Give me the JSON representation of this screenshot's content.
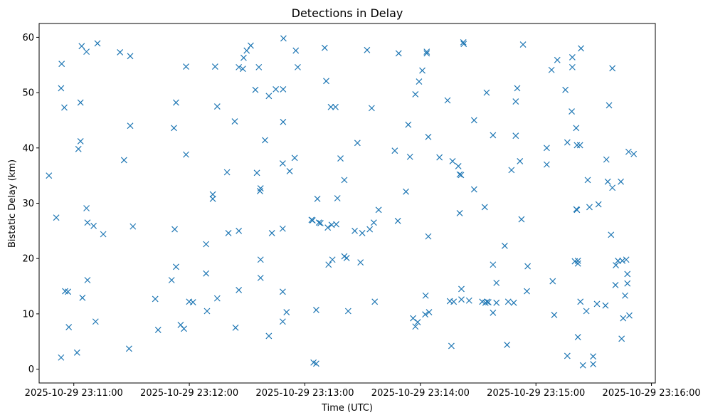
{
  "chart_data": {
    "type": "scatter",
    "title": "Detections in Delay",
    "xlabel": "Time (UTC)",
    "ylabel": "Bistatic Delay (km)",
    "marker": "x",
    "color": "#1f77b4",
    "x_unit": "seconds after 2025-10-29 23:11:00",
    "xlim": [
      -18,
      302
    ],
    "ylim": [
      -2.5,
      62.5
    ],
    "x_ticks": [
      {
        "value": 0,
        "label": "2025-10-29 23:11:00"
      },
      {
        "value": 60,
        "label": "2025-10-29 23:12:00"
      },
      {
        "value": 120,
        "label": "2025-10-29 23:13:00"
      },
      {
        "value": 180,
        "label": "2025-10-29 23:14:00"
      },
      {
        "value": 240,
        "label": "2025-10-29 23:15:00"
      },
      {
        "value": 300,
        "label": "2025-10-29 23:16:00"
      }
    ],
    "y_ticks": [
      0,
      10,
      20,
      30,
      40,
      50,
      60
    ],
    "points": [
      [
        -12.9,
        35.0
      ],
      [
        -9.1,
        27.4
      ],
      [
        -6.6,
        2.1
      ],
      [
        -6.6,
        50.8
      ],
      [
        -6.3,
        55.2
      ],
      [
        -4.9,
        47.3
      ],
      [
        -4.5,
        14.1
      ],
      [
        -3.0,
        14.0
      ],
      [
        -2.6,
        7.6
      ],
      [
        1.7,
        3.0
      ],
      [
        2.4,
        39.8
      ],
      [
        3.5,
        41.2
      ],
      [
        3.5,
        48.2
      ],
      [
        4.1,
        58.4
      ],
      [
        4.5,
        12.9
      ],
      [
        6.6,
        57.4
      ],
      [
        6.6,
        29.1
      ],
      [
        7.1,
        16.1
      ],
      [
        7.1,
        26.5
      ],
      [
        10.3,
        25.9
      ],
      [
        11.3,
        8.6
      ],
      [
        12.3,
        58.9
      ],
      [
        15.3,
        24.4
      ],
      [
        24.0,
        57.3
      ],
      [
        26.1,
        37.8
      ],
      [
        28.7,
        3.7
      ],
      [
        29.3,
        44.0
      ],
      [
        29.3,
        56.6
      ],
      [
        30.7,
        25.8
      ],
      [
        42.3,
        12.7
      ],
      [
        43.8,
        7.1
      ],
      [
        50.8,
        16.1
      ],
      [
        52.0,
        43.6
      ],
      [
        52.4,
        25.3
      ],
      [
        53.1,
        48.2
      ],
      [
        53.1,
        18.5
      ],
      [
        55.5,
        8.0
      ],
      [
        57.2,
        7.3
      ],
      [
        58.3,
        54.7
      ],
      [
        58.3,
        38.8
      ],
      [
        59.9,
        12.2
      ],
      [
        61.9,
        12.1
      ],
      [
        68.7,
        17.3
      ],
      [
        68.7,
        22.6
      ],
      [
        69.2,
        10.5
      ],
      [
        72.2,
        31.6
      ],
      [
        72.2,
        30.8
      ],
      [
        73.4,
        54.7
      ],
      [
        74.5,
        47.5
      ],
      [
        74.5,
        12.8
      ],
      [
        79.6,
        35.6
      ],
      [
        80.3,
        24.6
      ],
      [
        83.6,
        44.8
      ],
      [
        84.0,
        7.5
      ],
      [
        85.7,
        25.0
      ],
      [
        85.7,
        14.3
      ],
      [
        85.7,
        54.6
      ],
      [
        87.8,
        54.3
      ],
      [
        88.2,
        56.3
      ],
      [
        89.8,
        57.6
      ],
      [
        91.9,
        58.5
      ],
      [
        94.3,
        50.5
      ],
      [
        95.1,
        35.5
      ],
      [
        96.1,
        54.6
      ],
      [
        96.7,
        32.2
      ],
      [
        97.0,
        32.7
      ],
      [
        97.0,
        19.8
      ],
      [
        97.0,
        16.5
      ],
      [
        99.3,
        41.4
      ],
      [
        101.3,
        6.0
      ],
      [
        101.3,
        49.4
      ],
      [
        102.9,
        24.6
      ],
      [
        104.9,
        50.6
      ],
      [
        108.9,
        59.8
      ],
      [
        108.7,
        44.7
      ],
      [
        108.7,
        50.6
      ],
      [
        108.5,
        37.2
      ],
      [
        108.5,
        25.4
      ],
      [
        108.5,
        14.0
      ],
      [
        108.5,
        8.6
      ],
      [
        110.5,
        10.3
      ],
      [
        112.1,
        35.8
      ],
      [
        114.7,
        38.2
      ],
      [
        115.3,
        57.6
      ],
      [
        116.3,
        54.6
      ],
      [
        123.5,
        27.0
      ],
      [
        124.0,
        26.9
      ],
      [
        124.5,
        1.2
      ],
      [
        125.9,
        1.0
      ],
      [
        125.9,
        10.7
      ],
      [
        126.5,
        30.8
      ],
      [
        127.3,
        26.5
      ],
      [
        128.1,
        26.4
      ],
      [
        130.3,
        58.1
      ],
      [
        131.1,
        52.1
      ],
      [
        131.9,
        25.6
      ],
      [
        132.3,
        18.9
      ],
      [
        133.5,
        47.4
      ],
      [
        133.9,
        26.1
      ],
      [
        134.3,
        19.8
      ],
      [
        135.9,
        47.4
      ],
      [
        136.3,
        26.2
      ],
      [
        136.9,
        30.9
      ],
      [
        138.5,
        38.1
      ],
      [
        140.5,
        34.2
      ],
      [
        140.5,
        20.4
      ],
      [
        141.7,
        20.1
      ],
      [
        142.5,
        10.5
      ],
      [
        145.9,
        25.0
      ],
      [
        147.3,
        40.9
      ],
      [
        148.9,
        19.3
      ],
      [
        149.8,
        24.6
      ],
      [
        152.3,
        57.7
      ],
      [
        153.7,
        25.3
      ],
      [
        154.7,
        47.2
      ],
      [
        155.8,
        26.5
      ],
      [
        156.3,
        12.2
      ],
      [
        158.3,
        28.8
      ],
      [
        166.7,
        39.5
      ],
      [
        168.3,
        26.8
      ],
      [
        168.7,
        57.1
      ],
      [
        172.5,
        32.1
      ],
      [
        173.7,
        44.2
      ],
      [
        174.6,
        38.4
      ],
      [
        176.2,
        9.2
      ],
      [
        177.4,
        49.7
      ],
      [
        177.4,
        7.7
      ],
      [
        178.6,
        8.5
      ],
      [
        179.3,
        52.0
      ],
      [
        181.0,
        54.0
      ],
      [
        182.5,
        9.9
      ],
      [
        182.7,
        13.3
      ],
      [
        183.3,
        57.4
      ],
      [
        183.3,
        57.1
      ],
      [
        184.1,
        24.0
      ],
      [
        184.1,
        42.0
      ],
      [
        184.5,
        10.3
      ],
      [
        189.9,
        38.3
      ],
      [
        194.1,
        48.6
      ],
      [
        195.3,
        12.3
      ],
      [
        196.1,
        4.2
      ],
      [
        196.7,
        37.6
      ],
      [
        197.3,
        12.2
      ],
      [
        199.7,
        36.7
      ],
      [
        200.4,
        28.2
      ],
      [
        200.4,
        35.2
      ],
      [
        201.1,
        35.1
      ],
      [
        201.3,
        12.6
      ],
      [
        201.3,
        14.5
      ],
      [
        202.3,
        59.1
      ],
      [
        202.5,
        58.8
      ],
      [
        205.3,
        12.4
      ],
      [
        207.9,
        45.0
      ],
      [
        207.9,
        32.5
      ],
      [
        212.1,
        12.2
      ],
      [
        213.4,
        29.3
      ],
      [
        213.8,
        12.0
      ],
      [
        214.4,
        50.0
      ],
      [
        214.6,
        12.2
      ],
      [
        215.3,
        12.1
      ],
      [
        217.7,
        42.3
      ],
      [
        217.7,
        18.9
      ],
      [
        217.7,
        10.2
      ],
      [
        219.5,
        15.6
      ],
      [
        219.5,
        12.0
      ],
      [
        223.8,
        22.3
      ],
      [
        225.0,
        4.4
      ],
      [
        225.6,
        12.2
      ],
      [
        227.3,
        36.0
      ],
      [
        228.5,
        12.0
      ],
      [
        229.5,
        48.4
      ],
      [
        229.5,
        42.2
      ],
      [
        230.3,
        50.8
      ],
      [
        231.7,
        37.6
      ],
      [
        232.5,
        27.1
      ],
      [
        233.3,
        58.7
      ],
      [
        235.3,
        14.1
      ],
      [
        235.7,
        18.6
      ],
      [
        245.6,
        37.0
      ],
      [
        245.6,
        40.0
      ],
      [
        248.1,
        54.1
      ],
      [
        248.7,
        15.9
      ],
      [
        249.5,
        9.8
      ],
      [
        251.1,
        55.9
      ],
      [
        255.3,
        50.5
      ],
      [
        256.3,
        2.4
      ],
      [
        256.3,
        41.0
      ],
      [
        258.6,
        46.6
      ],
      [
        258.9,
        56.4
      ],
      [
        258.9,
        54.6
      ],
      [
        260.2,
        19.5
      ],
      [
        260.9,
        43.6
      ],
      [
        261.0,
        28.9
      ],
      [
        261.3,
        40.5
      ],
      [
        261.3,
        28.8
      ],
      [
        261.8,
        5.8
      ],
      [
        261.8,
        19.1
      ],
      [
        261.8,
        19.6
      ],
      [
        262.9,
        40.5
      ],
      [
        263.1,
        12.2
      ],
      [
        263.4,
        58.0
      ],
      [
        264.4,
        0.7
      ],
      [
        266.2,
        10.5
      ],
      [
        266.9,
        34.2
      ],
      [
        267.8,
        29.3
      ],
      [
        269.7,
        2.3
      ],
      [
        269.7,
        0.9
      ],
      [
        271.7,
        11.8
      ],
      [
        272.5,
        29.8
      ],
      [
        276.1,
        11.5
      ],
      [
        276.6,
        37.9
      ],
      [
        277.3,
        33.9
      ],
      [
        278.0,
        47.7
      ],
      [
        279.0,
        24.3
      ],
      [
        279.7,
        54.4
      ],
      [
        279.7,
        32.8
      ],
      [
        281.3,
        15.2
      ],
      [
        281.5,
        18.8
      ],
      [
        282.6,
        19.6
      ],
      [
        284.1,
        33.9
      ],
      [
        284.5,
        5.5
      ],
      [
        284.9,
        19.6
      ],
      [
        285.3,
        9.2
      ],
      [
        286.3,
        13.3
      ],
      [
        286.9,
        19.8
      ],
      [
        287.5,
        17.2
      ],
      [
        287.5,
        15.5
      ],
      [
        288.1,
        39.3
      ],
      [
        288.5,
        9.7
      ],
      [
        290.8,
        38.9
      ]
    ]
  }
}
